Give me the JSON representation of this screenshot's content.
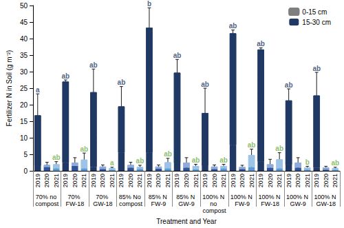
{
  "chart_data": {
    "type": "bar",
    "stacked": true,
    "grid": false,
    "legend": "upper right",
    "x_label": "Treatment and Year",
    "y_label": "Fertilizer N in Soil (g m⁻²)",
    "ylim": [
      0,
      50
    ],
    "yticks": [
      0,
      5,
      10,
      15,
      20,
      25,
      30,
      35,
      40,
      45,
      50
    ],
    "groups": [
      "70% no compost",
      "70% FW-18",
      "70% GW-18",
      "85% No compost",
      "85% N FW-9",
      "85% N GW-9",
      "100% N no compost",
      "100% N FW-9",
      "100% N FW-18",
      "100% N GW-9",
      "100% N GW-18"
    ],
    "categories": [
      "2019",
      "2020",
      "2021",
      "2019",
      "2020",
      "2021",
      "2019",
      "2020",
      "2021",
      "2019",
      "2020",
      "2021",
      "2019",
      "2020",
      "2021",
      "2019",
      "2020",
      "2021",
      "2019",
      "2020",
      "2021",
      "2019",
      "2020",
      "2021",
      "2019",
      "2020",
      "2021",
      "2019",
      "2020",
      "2021",
      "2019",
      "2020",
      "2021"
    ],
    "series": [
      {
        "name": "15-30 cm",
        "marker": "solid",
        "color": "#203864",
        "colors": [
          "#203864",
          "#2f5597",
          "#5b9bd5",
          "#203864",
          "#2f5597",
          "#5b9bd5",
          "#203864",
          "#2f5597",
          "#5b9bd5",
          "#203864",
          "#2f5597",
          "#5b9bd5",
          "#203864",
          "#2f5597",
          "#5b9bd5",
          "#203864",
          "#2f5597",
          "#5b9bd5",
          "#203864",
          "#2f5597",
          "#5b9bd5",
          "#203864",
          "#2f5597",
          "#5b9bd5",
          "#203864",
          "#2f5597",
          "#5b9bd5",
          "#203864",
          "#2f5597",
          "#5b9bd5",
          "#203864",
          "#2f5597",
          "#5b9bd5"
        ],
        "values": [
          1.5,
          1.2,
          0.8,
          2.5,
          1.5,
          0.8,
          1.2,
          0.6,
          0.3,
          5.5,
          1.0,
          0.6,
          5.5,
          0.7,
          0.8,
          2.3,
          1.0,
          0.5,
          1.5,
          0.6,
          0.8,
          7.8,
          0.6,
          1.2,
          2.8,
          1.0,
          0.8,
          1.7,
          1.0,
          0.4,
          1.0,
          0.4,
          0.3
        ],
        "errors": [
          0.3,
          0.5,
          0.3,
          1.0,
          0.8,
          0.3,
          0.4,
          0.3,
          0.1,
          3.5,
          0.5,
          0.2,
          1.0,
          0.3,
          0.3,
          0.8,
          0.5,
          0.2,
          0.3,
          0.3,
          0.3,
          1.5,
          0.3,
          0.5,
          0.8,
          0.5,
          0.3,
          0.5,
          0.5,
          0.2,
          0.3,
          0.2,
          0.1
        ]
      },
      {
        "name": "0-15 cm",
        "marker": "hatch",
        "color": "#7f7f7f",
        "colors": [
          "#203864",
          "#8faadc",
          "#9dc3e6",
          "#203864",
          "#8faadc",
          "#9dc3e6",
          "#203864",
          "#8faadc",
          "#9dc3e6",
          "#203864",
          "#8faadc",
          "#9dc3e6",
          "#203864",
          "#8faadc",
          "#9dc3e6",
          "#203864",
          "#8faadc",
          "#9dc3e6",
          "#203864",
          "#8faadc",
          "#9dc3e6",
          "#203864",
          "#8faadc",
          "#9dc3e6",
          "#203864",
          "#8faadc",
          "#9dc3e6",
          "#203864",
          "#8faadc",
          "#9dc3e6",
          "#203864",
          "#8faadc",
          "#9dc3e6"
        ],
        "values": [
          15.3,
          0.6,
          1.2,
          24.5,
          1.0,
          2.6,
          22.6,
          0.7,
          0.5,
          14.0,
          0.8,
          0.6,
          37.8,
          0.6,
          1.8,
          27.4,
          1.5,
          1.0,
          16.0,
          0.7,
          0.7,
          33.8,
          0.6,
          3.6,
          33.9,
          1.0,
          2.7,
          19.6,
          1.5,
          0.6,
          21.8,
          0.6,
          0.5
        ],
        "errors": [
          6.5,
          0.8,
          0.8,
          0.5,
          1.5,
          2.0,
          7.0,
          0.5,
          0.3,
          6.0,
          0.8,
          0.5,
          6.0,
          0.5,
          1.2,
          4.0,
          1.5,
          0.5,
          7.5,
          0.5,
          0.5,
          1.0,
          0.5,
          1.8,
          0.5,
          1.5,
          2.0,
          3.5,
          1.5,
          0.4,
          7.0,
          0.4,
          0.3
        ]
      }
    ],
    "annotations": [
      {
        "year": "2019",
        "color": "#203864",
        "letters": [
          "a",
          "ab",
          "ab",
          "ab",
          "b",
          "ab",
          "ab",
          "ab",
          "ab",
          "ab",
          "ab"
        ]
      },
      {
        "year": "2021",
        "color": "#70ad47",
        "letters": [
          "ab",
          "ab",
          "a",
          "ab",
          "ab",
          "ab",
          "ab",
          "ab",
          "ab",
          "b",
          "ab"
        ]
      }
    ]
  }
}
